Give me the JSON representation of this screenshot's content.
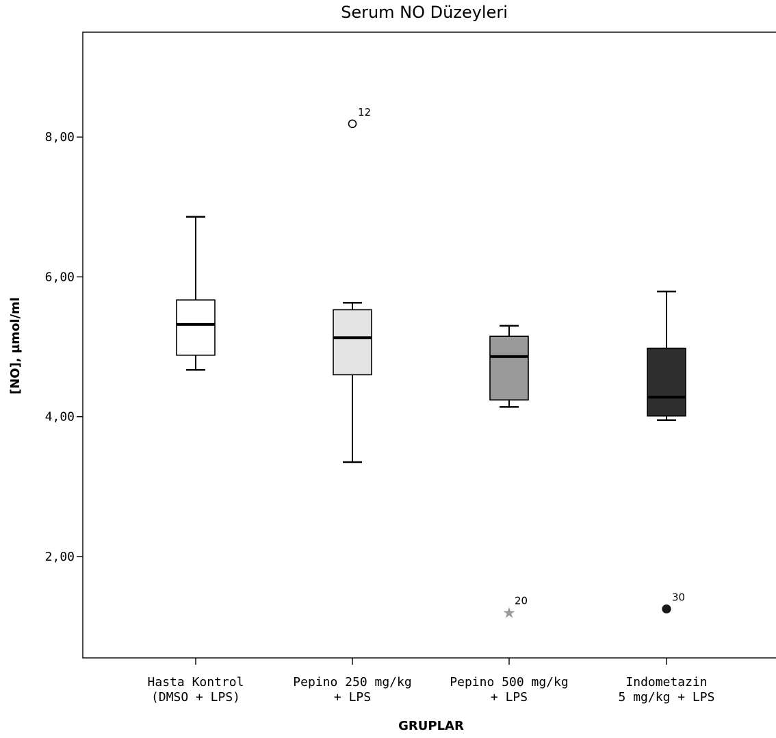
{
  "chart_data": {
    "type": "boxplot",
    "title": "Serum NO Düzeyleri",
    "xlabel": "GRUPLAR",
    "ylabel": "[NO], µmol/ml",
    "ylim": [
      0.55,
      9.5
    ],
    "yticks": [
      2,
      4,
      6,
      8
    ],
    "ytick_labels": [
      "2,00",
      "4,00",
      "6,00",
      "8,00"
    ],
    "grid": false,
    "legend": "none",
    "groups": [
      {
        "label_lines": [
          "Hasta Kontrol",
          "(DMSO + LPS)"
        ],
        "whisker_low": 4.67,
        "q1": 4.88,
        "median": 5.32,
        "q3": 5.67,
        "whisker_high": 6.86,
        "fill": "#ffffff",
        "outliers": []
      },
      {
        "label_lines": [
          "Pepino 250 mg/kg",
          "+ LPS"
        ],
        "whisker_low": 3.35,
        "q1": 4.6,
        "median": 5.13,
        "q3": 5.53,
        "whisker_high": 5.63,
        "fill": "#e3e3e3",
        "outliers": [
          {
            "value": 8.19,
            "case": "12",
            "marker": "circle-open"
          }
        ]
      },
      {
        "label_lines": [
          "Pepino 500 mg/kg",
          "+ LPS"
        ],
        "whisker_low": 4.14,
        "q1": 4.24,
        "median": 4.86,
        "q3": 5.15,
        "whisker_high": 5.3,
        "fill": "#9a9a9a",
        "outliers": [
          {
            "value": 1.2,
            "case": "20",
            "marker": "star"
          }
        ]
      },
      {
        "label_lines": [
          "Indometazin",
          "5 mg/kg + LPS"
        ],
        "whisker_low": 3.95,
        "q1": 4.01,
        "median": 4.28,
        "q3": 4.98,
        "whisker_high": 5.79,
        "fill": "#2e2e2e",
        "outliers": [
          {
            "value": 1.25,
            "case": "30",
            "marker": "circle-filled"
          }
        ]
      }
    ]
  }
}
